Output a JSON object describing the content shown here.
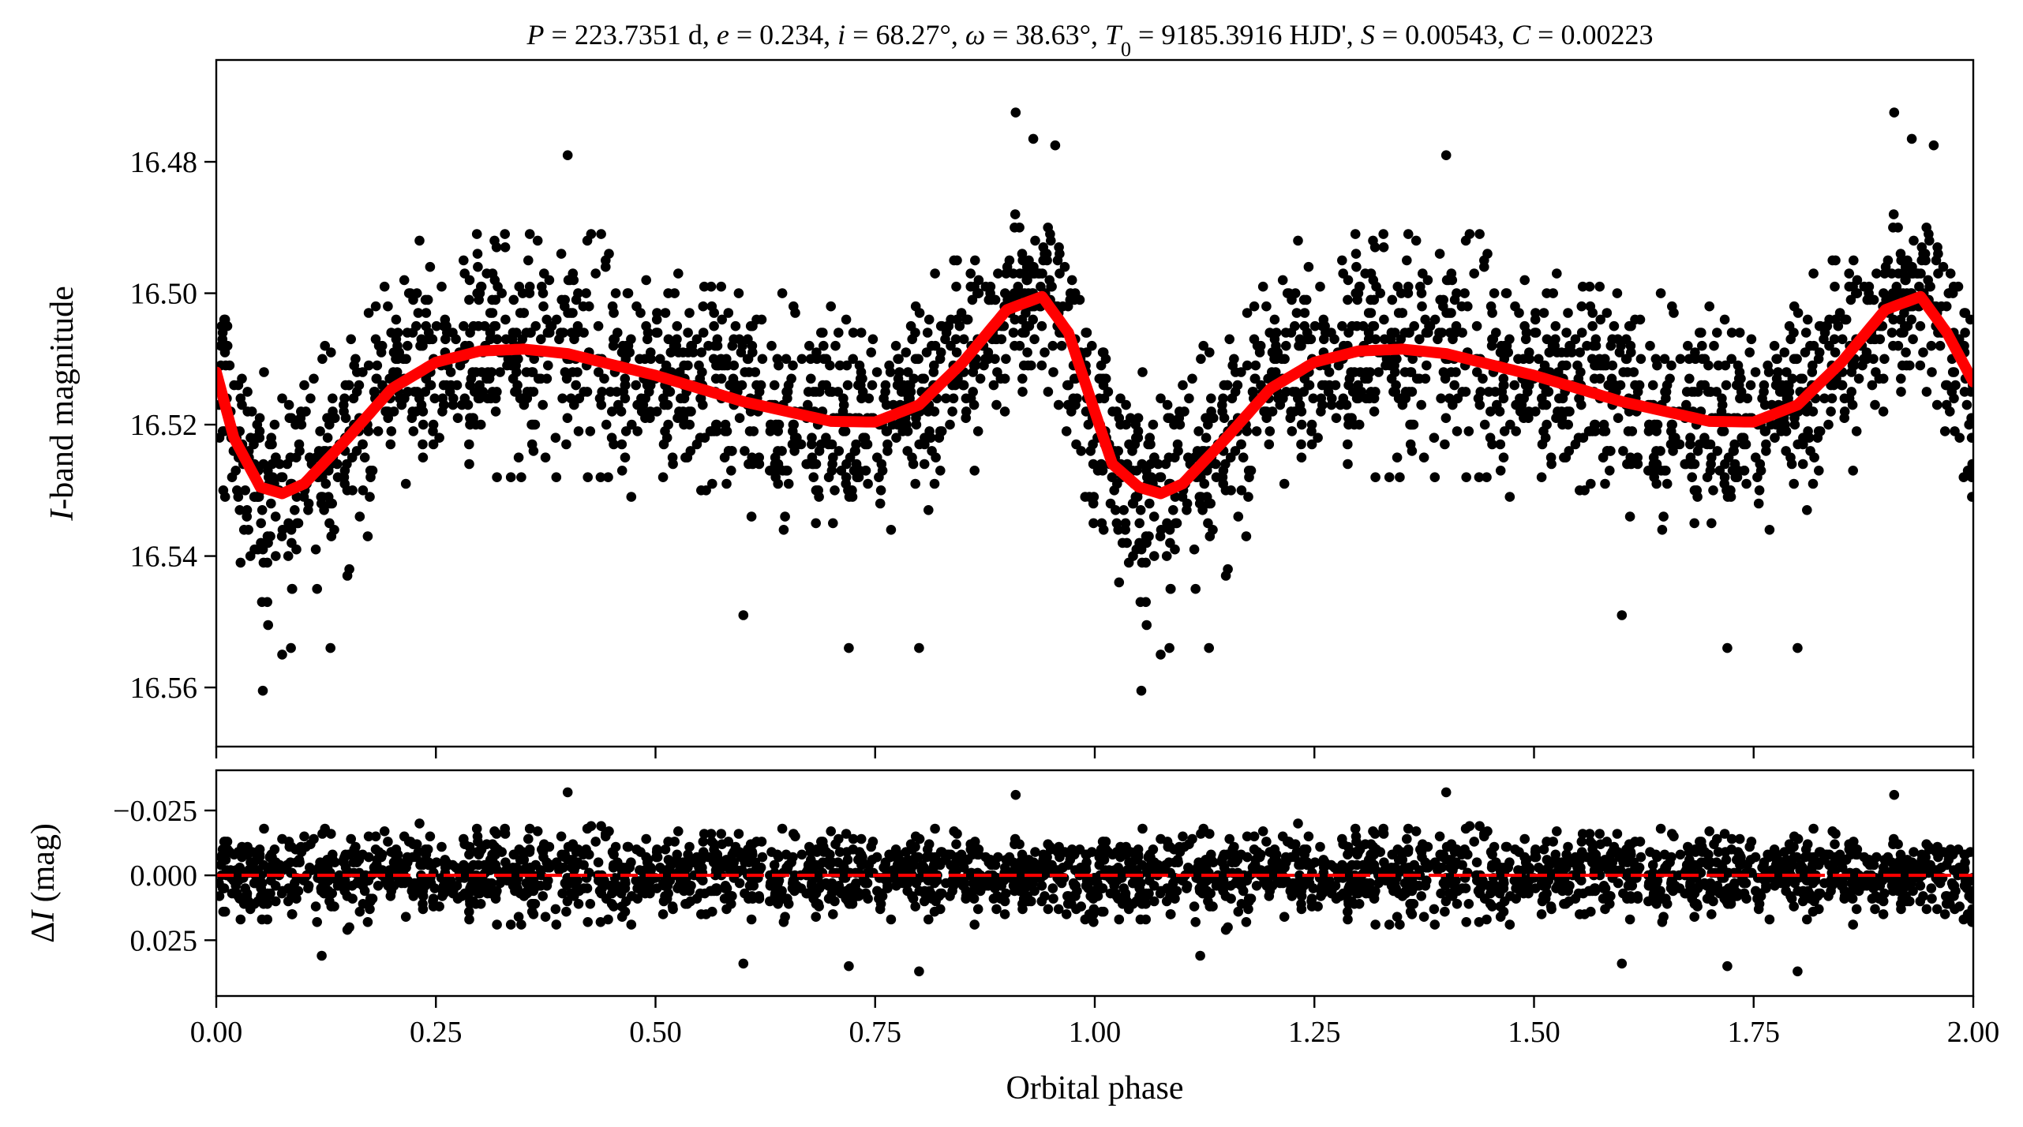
{
  "chart_data": [
    {
      "panel": "light-curve",
      "type": "scatter",
      "title_parts": [
        {
          "t": "P",
          "i": true
        },
        {
          "t": " = 223.7351 d, "
        },
        {
          "t": "e",
          "i": true
        },
        {
          "t": " = 0.234, "
        },
        {
          "t": "i",
          "i": true
        },
        {
          "t": " = 68.27°, "
        },
        {
          "t": "ω",
          "i": true
        },
        {
          "t": " = 38.63°, "
        },
        {
          "t": "T",
          "i": true
        },
        {
          "t": "0",
          "sub": true
        },
        {
          "t": " = 9185.3916 HJD', "
        },
        {
          "t": "S",
          "i": true
        },
        {
          "t": " = 0.00543, "
        },
        {
          "t": "C",
          "i": true
        },
        {
          "t": " = 0.00223"
        }
      ],
      "ylabel_parts": [
        {
          "t": "I",
          "i": true
        },
        {
          "t": "-band magnitude"
        }
      ],
      "xlim": [
        0.0,
        2.0
      ],
      "ylim": [
        16.569,
        16.4645
      ],
      "y_inverted": true,
      "yticks": [
        "16.48",
        "16.50",
        "16.52",
        "16.54",
        "16.56"
      ],
      "yticks_values": [
        16.48,
        16.5,
        16.52,
        16.54,
        16.56
      ],
      "point_color": "#000000",
      "model_color": "#ff0000",
      "model_x": [
        0.0,
        0.02,
        0.05,
        0.075,
        0.1,
        0.15,
        0.2,
        0.25,
        0.3,
        0.35,
        0.4,
        0.5,
        0.6,
        0.7,
        0.75,
        0.8,
        0.85,
        0.9,
        0.94,
        0.97,
        1.0,
        1.02,
        1.05,
        1.075,
        1.1,
        1.15,
        1.2,
        1.25,
        1.3,
        1.35,
        1.4,
        1.5,
        1.6,
        1.7,
        1.75,
        1.8,
        1.85,
        1.9,
        1.94,
        1.97,
        2.0
      ],
      "model_y": [
        16.512,
        16.522,
        16.5295,
        16.5305,
        16.529,
        16.522,
        16.5145,
        16.5105,
        16.5088,
        16.5085,
        16.5092,
        16.5125,
        16.5165,
        16.5195,
        16.5196,
        16.517,
        16.5105,
        16.5025,
        16.5005,
        16.506,
        16.518,
        16.526,
        16.5295,
        16.5305,
        16.529,
        16.522,
        16.5145,
        16.5105,
        16.5088,
        16.5085,
        16.5092,
        16.5125,
        16.5165,
        16.5195,
        16.5196,
        16.517,
        16.5105,
        16.5025,
        16.5005,
        16.506,
        16.5135
      ],
      "outliers_x": [
        0.0062,
        0.053,
        0.059,
        0.075,
        0.085,
        0.13,
        0.4,
        0.6,
        0.72,
        0.8,
        0.91,
        0.93,
        0.955,
        1.053,
        1.059,
        1.075,
        1.085,
        1.13,
        1.4,
        1.6,
        1.72,
        1.8,
        1.91,
        1.93,
        1.955
      ],
      "outliers_y": [
        16.505,
        16.5605,
        16.5505,
        16.555,
        16.554,
        16.554,
        16.479,
        16.549,
        16.554,
        16.554,
        16.4725,
        16.4765,
        16.4775,
        16.5605,
        16.5505,
        16.555,
        16.554,
        16.554,
        16.479,
        16.549,
        16.554,
        16.554,
        16.4725,
        16.4765,
        16.4775
      ]
    },
    {
      "panel": "residuals",
      "type": "scatter",
      "ylabel_parts": [
        {
          "t": "Δ"
        },
        {
          "t": "I",
          "i": true
        },
        {
          "t": " (mag)"
        }
      ],
      "xlabel": "Orbital phase",
      "xlim": [
        0.0,
        2.0
      ],
      "ylim": [
        0.0465,
        -0.0405
      ],
      "y_inverted": true,
      "yticks": [
        "−0.025",
        "0.000",
        "0.025"
      ],
      "yticks_values": [
        -0.025,
        0.0,
        0.025
      ],
      "xticks": [
        "0.00",
        "0.25",
        "0.50",
        "0.75",
        "1.00",
        "1.25",
        "1.50",
        "1.75",
        "2.00"
      ],
      "xticks_values": [
        0.0,
        0.25,
        0.5,
        0.75,
        1.0,
        1.25,
        1.5,
        1.75,
        2.0
      ],
      "zero_line": {
        "y": 0.0,
        "color": "#ff0000",
        "style": "dashed"
      },
      "point_color": "#000000",
      "outliers_x": [
        0.4,
        0.8,
        0.91,
        0.6,
        0.72,
        1.4,
        1.8,
        1.6,
        1.72,
        0.12,
        1.12,
        1.91
      ],
      "outliers_y": [
        -0.032,
        0.037,
        -0.031,
        0.034,
        0.035,
        -0.032,
        0.037,
        0.034,
        0.035,
        0.031,
        0.031,
        -0.031
      ]
    }
  ]
}
